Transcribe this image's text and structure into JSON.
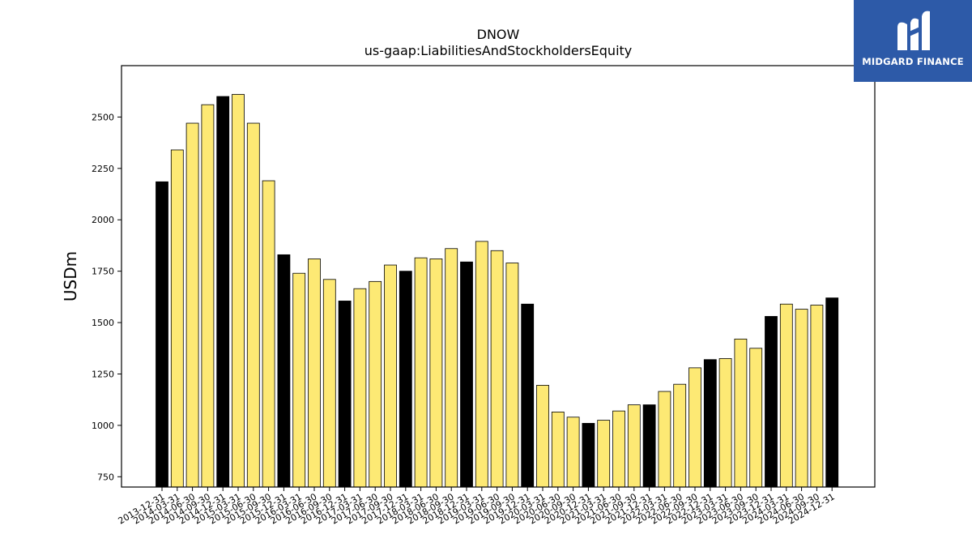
{
  "chart_data": {
    "type": "bar",
    "title": "DNOW",
    "subtitle": "us-gaap:LiabilitiesAndStockholdersEquity",
    "xlabel": "",
    "ylabel": "USDm",
    "ylim": [
      700,
      2750
    ],
    "yticks": [
      750,
      1000,
      1250,
      1500,
      1750,
      2000,
      2250,
      2500
    ],
    "grid": false,
    "colors": {
      "annual": "#000000",
      "quarter": "#fde974",
      "edge": "#000000"
    },
    "categories": [
      "2013-12-31",
      "2014-03-31",
      "2014-06-30",
      "2014-09-30",
      "2014-12-31",
      "2015-03-31",
      "2015-06-30",
      "2015-09-30",
      "2015-12-31",
      "2016-03-31",
      "2016-06-30",
      "2016-09-30",
      "2016-12-31",
      "2017-03-31",
      "2017-06-30",
      "2017-09-30",
      "2017-12-31",
      "2018-03-31",
      "2018-06-30",
      "2018-09-30",
      "2018-12-31",
      "2019-03-31",
      "2019-06-30",
      "2019-09-30",
      "2019-12-31",
      "2020-03-31",
      "2020-06-30",
      "2020-09-30",
      "2020-12-31",
      "2021-03-31",
      "2021-06-30",
      "2021-09-30",
      "2021-12-31",
      "2022-03-31",
      "2022-06-30",
      "2022-09-30",
      "2022-12-31",
      "2023-03-31",
      "2023-06-30",
      "2023-09-30",
      "2023-12-31",
      "2024-03-31",
      "2024-06-30",
      "2024-09-30",
      "2024-12-31"
    ],
    "values": [
      2185,
      2340,
      2470,
      2560,
      2600,
      2610,
      2470,
      2190,
      1830,
      1740,
      1810,
      1710,
      1605,
      1665,
      1700,
      1780,
      1750,
      1815,
      1810,
      1860,
      1795,
      1895,
      1850,
      1790,
      1590,
      1195,
      1065,
      1040,
      1010,
      1025,
      1070,
      1100,
      1100,
      1165,
      1200,
      1280,
      1320,
      1325,
      1420,
      1375,
      1530,
      1590,
      1565,
      1585,
      1620
    ],
    "annual": [
      true,
      false,
      false,
      false,
      true,
      false,
      false,
      false,
      true,
      false,
      false,
      false,
      true,
      false,
      false,
      false,
      true,
      false,
      false,
      false,
      true,
      false,
      false,
      false,
      true,
      false,
      false,
      false,
      true,
      false,
      false,
      false,
      true,
      false,
      false,
      false,
      true,
      false,
      false,
      false,
      true,
      false,
      false,
      false,
      true
    ]
  },
  "logo": {
    "text": "MIDGARD FINANCE",
    "icon": "midgard-m-logo-icon"
  }
}
